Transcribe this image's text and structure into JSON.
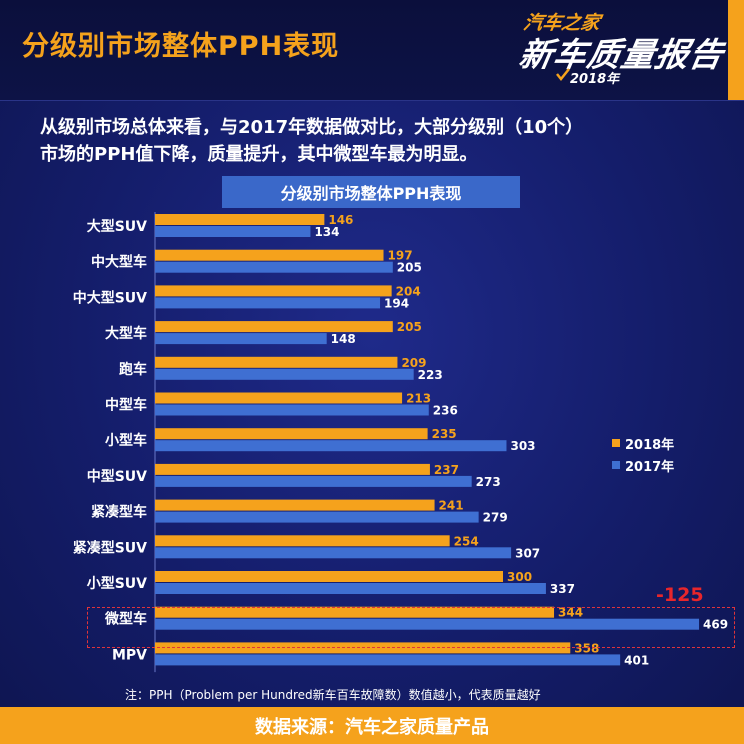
{
  "header": {
    "title": "分级别市场整体PPH表现",
    "logo": {
      "line1": "汽车之家",
      "line2": "新车质量报告",
      "line3": "2018年"
    }
  },
  "intro": {
    "line1": "从级别市场总体来看，与2017年数据做对比，大部分级别（10个）",
    "line2": "市场的PPH值下降，质量提升，其中微型车最为明显。"
  },
  "note": "注：PPH（Problem per Hundred新车百车故障数）数值越小，代表质量越好",
  "footer": {
    "source": "数据来源：汽车之家质量产品"
  },
  "colors": {
    "series_2018": "#f5a21c",
    "series_2017": "#3f6fd2",
    "highlight": "#e8262b"
  },
  "chart_data": {
    "type": "bar",
    "orientation": "horizontal",
    "title": "分级别市场整体PPH表现",
    "categories": [
      "大型SUV",
      "中大型车",
      "中大型SUV",
      "大型车",
      "跑车",
      "中型车",
      "小型车",
      "中型SUV",
      "紧凑型车",
      "紧凑型SUV",
      "小型SUV",
      "微型车",
      "MPV"
    ],
    "series": [
      {
        "name": "2018年",
        "values": [
          146,
          197,
          204,
          205,
          209,
          213,
          235,
          237,
          241,
          254,
          300,
          344,
          358
        ]
      },
      {
        "name": "2017年",
        "values": [
          134,
          205,
          194,
          148,
          223,
          236,
          303,
          273,
          279,
          307,
          337,
          469,
          401
        ]
      }
    ],
    "xlim": [
      0,
      500
    ],
    "grid": false,
    "legend": "right",
    "annotation": {
      "category": "微型车",
      "text": "-125"
    }
  }
}
